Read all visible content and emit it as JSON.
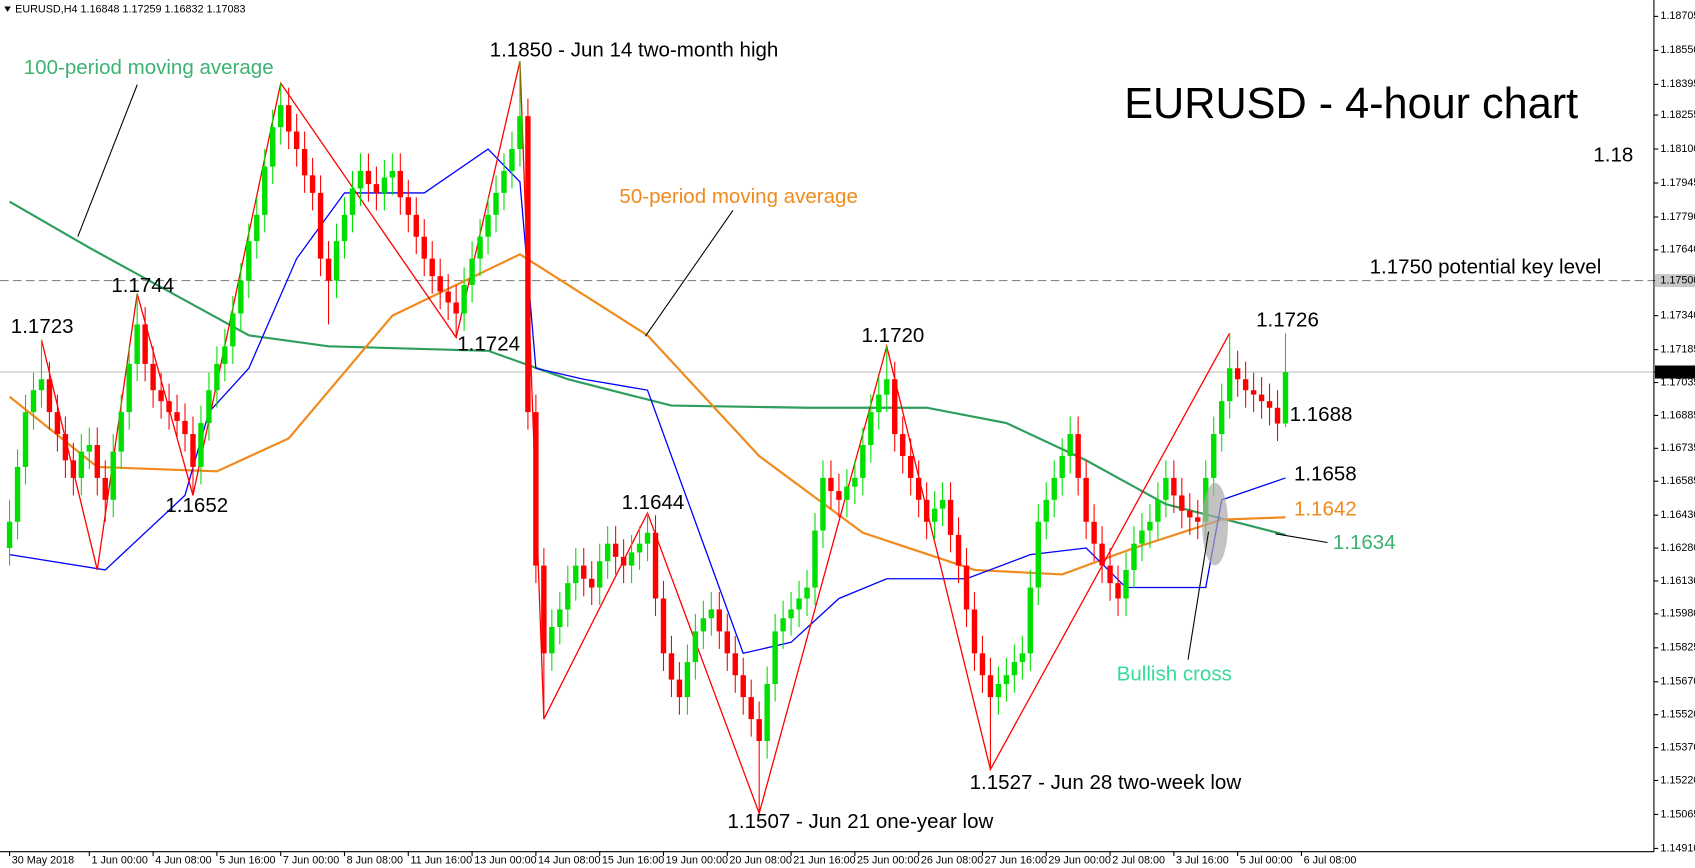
{
  "chart_data": {
    "type": "candlestick",
    "header": "EURUSD,H4  1.16848 1.17259 1.16832 1.17083",
    "title": "EURUSD - 4-hour chart",
    "xlim": [
      -1.2,
      206.2
    ],
    "ylim": [
      1.14895,
      1.18755
    ],
    "xticks": [
      {
        "value": 0,
        "label": "30 May 2018"
      },
      {
        "value": 10,
        "label": "1 Jun 00:00"
      },
      {
        "value": 18,
        "label": "4 Jun 08:00"
      },
      {
        "value": 26,
        "label": "5 Jun 16:00"
      },
      {
        "value": 34,
        "label": "7 Jun 00:00"
      },
      {
        "value": 42,
        "label": "8 Jun 08:00"
      },
      {
        "value": 50,
        "label": "11 Jun 16:00"
      },
      {
        "value": 58,
        "label": "13 Jun 00:00"
      },
      {
        "value": 66,
        "label": "14 Jun 08:00"
      },
      {
        "value": 74,
        "label": "15 Jun 16:00"
      },
      {
        "value": 82,
        "label": "19 Jun 00:00"
      },
      {
        "value": 90,
        "label": "20 Jun 08:00"
      },
      {
        "value": 98,
        "label": "21 Jun 16:00"
      },
      {
        "value": 106,
        "label": "25 Jun 00:00"
      },
      {
        "value": 114,
        "label": "26 Jun 08:00"
      },
      {
        "value": 122,
        "label": "27 Jun 16:00"
      },
      {
        "value": 130,
        "label": "29 Jun 00:00"
      },
      {
        "value": 138,
        "label": "2 Jul 08:00"
      },
      {
        "value": 146,
        "label": "3 Jul 16:00"
      },
      {
        "value": 154,
        "label": "5 Jul 00:00"
      },
      {
        "value": 162,
        "label": "6 Jul 08:00"
      }
    ],
    "yticks": [
      1.18705,
      {
        "value": 1.1855,
        "label": "1.18550"
      },
      1.18395,
      1.18255,
      {
        "value": 1.181,
        "label": "1.18100"
      },
      1.17945,
      {
        "value": 1.1779,
        "label": "1.17790"
      },
      {
        "value": 1.1764,
        "label": "1.17640"
      },
      {
        "value": 1.175,
        "label": "1.17500"
      },
      {
        "value": 1.1734,
        "label": "1.17340"
      },
      1.17185,
      1.17083,
      1.17035,
      1.16885,
      1.16735,
      1.16585,
      {
        "value": 1.1643,
        "label": "1.16430"
      },
      {
        "value": 1.1628,
        "label": "1.16280"
      },
      {
        "value": 1.1613,
        "label": "1.16130"
      },
      {
        "value": 1.1598,
        "label": "1.15980"
      },
      1.15825,
      {
        "value": 1.1567,
        "label": "1.15670"
      },
      {
        "value": 1.1552,
        "label": "1.15520"
      },
      {
        "value": 1.1537,
        "label": "1.15370"
      },
      {
        "value": 1.1522,
        "label": "1.15220"
      },
      1.15065,
      {
        "value": 1.1491,
        "label": "1.14910"
      }
    ],
    "key_level": 1.175,
    "last_price": 1.17083,
    "up_color": "#00e000",
    "down_color": "#ff0000",
    "ohlc": [
      [
        1.1628,
        1.165,
        1.162,
        1.164
      ],
      [
        1.164,
        1.1673,
        1.1632,
        1.1665
      ],
      [
        1.1665,
        1.1698,
        1.1657,
        1.169
      ],
      [
        1.169,
        1.1708,
        1.1682,
        1.17
      ],
      [
        1.17,
        1.1723,
        1.1692,
        1.1705
      ],
      [
        1.1705,
        1.1713,
        1.1682,
        1.169
      ],
      [
        1.169,
        1.1698,
        1.1672,
        1.168
      ],
      [
        1.168,
        1.1688,
        1.166,
        1.1668
      ],
      [
        1.1668,
        1.1676,
        1.1652,
        1.166
      ],
      [
        1.166,
        1.168,
        1.1652,
        1.1672
      ],
      [
        1.1672,
        1.1683,
        1.1664,
        1.1675
      ],
      [
        1.1675,
        1.1683,
        1.1652,
        1.166
      ],
      [
        1.166,
        1.1668,
        1.164,
        1.165
      ],
      [
        1.165,
        1.168,
        1.1642,
        1.1672
      ],
      [
        1.1672,
        1.1698,
        1.1664,
        1.169
      ],
      [
        1.169,
        1.172,
        1.1682,
        1.1712
      ],
      [
        1.1712,
        1.1744,
        1.1704,
        1.173
      ],
      [
        1.173,
        1.1738,
        1.1704,
        1.1712
      ],
      [
        1.1712,
        1.172,
        1.1692,
        1.17
      ],
      [
        1.17,
        1.1708,
        1.1687,
        1.1695
      ],
      [
        1.1695,
        1.1703,
        1.1682,
        1.169
      ],
      [
        1.169,
        1.1698,
        1.1678,
        1.1686
      ],
      [
        1.1686,
        1.1694,
        1.1672,
        1.168
      ],
      [
        1.168,
        1.1688,
        1.1652,
        1.1665
      ],
      [
        1.1665,
        1.1693,
        1.1657,
        1.1685
      ],
      [
        1.1685,
        1.1708,
        1.1677,
        1.17
      ],
      [
        1.17,
        1.172,
        1.1692,
        1.1712
      ],
      [
        1.1712,
        1.1728,
        1.1704,
        1.172
      ],
      [
        1.172,
        1.1743,
        1.1712,
        1.1735
      ],
      [
        1.1735,
        1.1758,
        1.1727,
        1.175
      ],
      [
        1.175,
        1.1776,
        1.1742,
        1.1768
      ],
      [
        1.1768,
        1.1788,
        1.176,
        1.178
      ],
      [
        1.178,
        1.181,
        1.1772,
        1.1802
      ],
      [
        1.1802,
        1.1828,
        1.1794,
        1.182
      ],
      [
        1.182,
        1.184,
        1.1812,
        1.183
      ],
      [
        1.183,
        1.1838,
        1.181,
        1.1818
      ],
      [
        1.1818,
        1.1826,
        1.1802,
        1.181
      ],
      [
        1.181,
        1.1818,
        1.179,
        1.1798
      ],
      [
        1.1798,
        1.1806,
        1.1782,
        1.179
      ],
      [
        1.179,
        1.1798,
        1.1752,
        1.176
      ],
      [
        1.176,
        1.1768,
        1.173,
        1.175
      ],
      [
        1.175,
        1.1776,
        1.1742,
        1.1768
      ],
      [
        1.1768,
        1.1788,
        1.176,
        1.178
      ],
      [
        1.178,
        1.18,
        1.1772,
        1.1792
      ],
      [
        1.1792,
        1.1808,
        1.1784,
        1.18
      ],
      [
        1.18,
        1.1808,
        1.1786,
        1.1794
      ],
      [
        1.1794,
        1.1802,
        1.1782,
        1.179
      ],
      [
        1.179,
        1.1805,
        1.1782,
        1.1797
      ],
      [
        1.1797,
        1.1808,
        1.1789,
        1.18
      ],
      [
        1.18,
        1.1808,
        1.178,
        1.1788
      ],
      [
        1.1788,
        1.1796,
        1.1772,
        1.178
      ],
      [
        1.178,
        1.1788,
        1.1762,
        1.177
      ],
      [
        1.177,
        1.1778,
        1.1752,
        1.176
      ],
      [
        1.176,
        1.1768,
        1.1744,
        1.1752
      ],
      [
        1.1752,
        1.176,
        1.1737,
        1.1745
      ],
      [
        1.1745,
        1.1753,
        1.1732,
        1.174
      ],
      [
        1.174,
        1.1748,
        1.1724,
        1.1735
      ],
      [
        1.1735,
        1.1756,
        1.1727,
        1.1748
      ],
      [
        1.1748,
        1.1768,
        1.174,
        1.176
      ],
      [
        1.176,
        1.1778,
        1.1752,
        1.177
      ],
      [
        1.177,
        1.1788,
        1.1762,
        1.178
      ],
      [
        1.178,
        1.1798,
        1.1772,
        1.179
      ],
      [
        1.179,
        1.1808,
        1.1782,
        1.18
      ],
      [
        1.18,
        1.1818,
        1.1792,
        1.181
      ],
      [
        1.181,
        1.185,
        1.1802,
        1.1825
      ],
      [
        1.1825,
        1.1833,
        1.1682,
        1.169
      ],
      [
        1.169,
        1.1698,
        1.1612,
        1.162
      ],
      [
        1.162,
        1.1628,
        1.155,
        1.158
      ],
      [
        1.158,
        1.16,
        1.1572,
        1.1592
      ],
      [
        1.1592,
        1.1608,
        1.1584,
        1.16
      ],
      [
        1.16,
        1.162,
        1.1592,
        1.1612
      ],
      [
        1.1612,
        1.1628,
        1.1604,
        1.162
      ],
      [
        1.162,
        1.1628,
        1.1606,
        1.1614
      ],
      [
        1.1614,
        1.1622,
        1.1602,
        1.161
      ],
      [
        1.161,
        1.163,
        1.1602,
        1.1622
      ],
      [
        1.1622,
        1.1638,
        1.1614,
        1.163
      ],
      [
        1.163,
        1.1638,
        1.1616,
        1.1624
      ],
      [
        1.1624,
        1.1632,
        1.1612,
        1.162
      ],
      [
        1.162,
        1.1634,
        1.1612,
        1.1626
      ],
      [
        1.1626,
        1.1638,
        1.1618,
        1.163
      ],
      [
        1.163,
        1.1644,
        1.1622,
        1.1635
      ],
      [
        1.1635,
        1.1643,
        1.1597,
        1.1605
      ],
      [
        1.1605,
        1.1613,
        1.1572,
        1.158
      ],
      [
        1.158,
        1.1588,
        1.156,
        1.1568
      ],
      [
        1.1568,
        1.1576,
        1.1552,
        1.156
      ],
      [
        1.156,
        1.1584,
        1.1552,
        1.1576
      ],
      [
        1.1576,
        1.1598,
        1.1568,
        1.159
      ],
      [
        1.159,
        1.1604,
        1.1582,
        1.1596
      ],
      [
        1.1596,
        1.1608,
        1.1588,
        1.16
      ],
      [
        1.16,
        1.1608,
        1.1582,
        1.159
      ],
      [
        1.159,
        1.1598,
        1.1572,
        1.158
      ],
      [
        1.158,
        1.1588,
        1.1562,
        1.157
      ],
      [
        1.157,
        1.1578,
        1.1552,
        1.156
      ],
      [
        1.156,
        1.1568,
        1.1542,
        1.155
      ],
      [
        1.155,
        1.1558,
        1.1507,
        1.154
      ],
      [
        1.154,
        1.1574,
        1.1532,
        1.1566
      ],
      [
        1.1566,
        1.1598,
        1.1558,
        1.159
      ],
      [
        1.159,
        1.1604,
        1.1582,
        1.1596
      ],
      [
        1.1596,
        1.1608,
        1.1588,
        1.16
      ],
      [
        1.16,
        1.1613,
        1.1592,
        1.1605
      ],
      [
        1.1605,
        1.1618,
        1.1597,
        1.161
      ],
      [
        1.161,
        1.1644,
        1.1602,
        1.1636
      ],
      [
        1.1636,
        1.1668,
        1.1628,
        1.166
      ],
      [
        1.166,
        1.1668,
        1.1646,
        1.1654
      ],
      [
        1.1654,
        1.1662,
        1.1642,
        1.165
      ],
      [
        1.165,
        1.1664,
        1.1642,
        1.1656
      ],
      [
        1.1656,
        1.1668,
        1.1648,
        1.166
      ],
      [
        1.166,
        1.1683,
        1.1652,
        1.1675
      ],
      [
        1.1675,
        1.1698,
        1.1667,
        1.169
      ],
      [
        1.169,
        1.1706,
        1.1682,
        1.1698
      ],
      [
        1.1698,
        1.172,
        1.169,
        1.1705
      ],
      [
        1.1705,
        1.1713,
        1.1672,
        1.168
      ],
      [
        1.168,
        1.1688,
        1.1662,
        1.167
      ],
      [
        1.167,
        1.1678,
        1.1652,
        1.166
      ],
      [
        1.166,
        1.1668,
        1.1642,
        1.165
      ],
      [
        1.165,
        1.1658,
        1.1632,
        1.164
      ],
      [
        1.164,
        1.1654,
        1.1632,
        1.1646
      ],
      [
        1.1646,
        1.1658,
        1.1638,
        1.165
      ],
      [
        1.165,
        1.1658,
        1.1626,
        1.1634
      ],
      [
        1.1634,
        1.1642,
        1.1612,
        1.162
      ],
      [
        1.162,
        1.1628,
        1.1592,
        1.16
      ],
      [
        1.16,
        1.1608,
        1.1572,
        1.158
      ],
      [
        1.158,
        1.1588,
        1.1562,
        1.157
      ],
      [
        1.157,
        1.1578,
        1.1527,
        1.156
      ],
      [
        1.156,
        1.1574,
        1.1552,
        1.1566
      ],
      [
        1.1566,
        1.1578,
        1.1558,
        1.157
      ],
      [
        1.157,
        1.1584,
        1.1562,
        1.1576
      ],
      [
        1.1576,
        1.1588,
        1.1568,
        1.158
      ],
      [
        1.158,
        1.1618,
        1.1572,
        1.161
      ],
      [
        1.161,
        1.1648,
        1.1602,
        1.164
      ],
      [
        1.164,
        1.1658,
        1.1632,
        1.165
      ],
      [
        1.165,
        1.1668,
        1.1642,
        1.166
      ],
      [
        1.166,
        1.1678,
        1.1652,
        1.167
      ],
      [
        1.167,
        1.1688,
        1.1662,
        1.168
      ],
      [
        1.168,
        1.1688,
        1.1652,
        1.166
      ],
      [
        1.166,
        1.1668,
        1.1632,
        1.164
      ],
      [
        1.164,
        1.1648,
        1.1622,
        1.163
      ],
      [
        1.163,
        1.1638,
        1.1612,
        1.162
      ],
      [
        1.162,
        1.1628,
        1.1604,
        1.1612
      ],
      [
        1.1612,
        1.162,
        1.1597,
        1.1605
      ],
      [
        1.1605,
        1.1626,
        1.1597,
        1.1618
      ],
      [
        1.1618,
        1.1638,
        1.161,
        1.163
      ],
      [
        1.163,
        1.1644,
        1.1622,
        1.1636
      ],
      [
        1.1636,
        1.1648,
        1.1628,
        1.164
      ],
      [
        1.164,
        1.1658,
        1.1632,
        1.165
      ],
      [
        1.165,
        1.1668,
        1.1642,
        1.166
      ],
      [
        1.166,
        1.1668,
        1.1644,
        1.1652
      ],
      [
        1.1652,
        1.166,
        1.1637,
        1.1645
      ],
      [
        1.1645,
        1.1653,
        1.1634,
        1.1642
      ],
      [
        1.1642,
        1.165,
        1.1632,
        1.164
      ],
      [
        1.164,
        1.1668,
        1.1632,
        1.166
      ],
      [
        1.166,
        1.1688,
        1.1652,
        1.168
      ],
      [
        1.168,
        1.1703,
        1.1672,
        1.1695
      ],
      [
        1.1695,
        1.1726,
        1.1687,
        1.171
      ],
      [
        1.171,
        1.1718,
        1.1697,
        1.1705
      ],
      [
        1.1705,
        1.1713,
        1.1692,
        1.17
      ],
      [
        1.17,
        1.1708,
        1.169,
        1.1698
      ],
      [
        1.1698,
        1.1706,
        1.1687,
        1.1695
      ],
      [
        1.1695,
        1.1703,
        1.1684,
        1.1692
      ],
      [
        1.1692,
        1.17,
        1.16768,
        1.16848
      ],
      [
        1.16848,
        1.17259,
        1.16832,
        1.17083
      ]
    ],
    "lines": [
      {
        "name": "100-period moving average",
        "color": "#2e9e5e",
        "x": [
          0,
          10,
          20,
          30,
          40,
          60,
          70,
          83,
          100,
          115,
          125,
          135,
          145,
          160
        ],
        "values": [
          1.1786,
          1.1765,
          1.1745,
          1.1725,
          1.172,
          1.1718,
          1.1705,
          1.1693,
          1.1692,
          1.1692,
          1.1685,
          1.1668,
          1.1648,
          1.1634
        ]
      },
      {
        "name": "50-period moving average",
        "color": "#f08a1c",
        "x": [
          0,
          11,
          26,
          35,
          48,
          64,
          80,
          94,
          107,
          121,
          132,
          141,
          152,
          160
        ],
        "values": [
          1.1697,
          1.1665,
          1.1663,
          1.1678,
          1.1734,
          1.1762,
          1.1725,
          1.167,
          1.1635,
          1.1618,
          1.1616,
          1.1628,
          1.1641,
          1.1642
        ]
      },
      {
        "color": "#0000ff",
        "x": [
          0,
          12,
          22,
          25,
          30,
          36,
          42,
          52,
          60,
          64,
          66,
          72,
          80,
          88,
          92,
          98,
          104,
          110,
          120,
          128,
          135,
          140,
          150,
          152,
          160
        ],
        "values": [
          1.1625,
          1.1618,
          1.1652,
          1.169,
          1.171,
          1.176,
          1.179,
          1.179,
          1.181,
          1.1795,
          1.171,
          1.1705,
          1.17,
          1.162,
          1.158,
          1.1585,
          1.1605,
          1.1614,
          1.1614,
          1.1625,
          1.1628,
          1.161,
          1.161,
          1.165,
          1.166
        ]
      },
      {
        "color": "#ff0000",
        "x": [
          4,
          11,
          16,
          23,
          34,
          56,
          64,
          67,
          80,
          94,
          110,
          123,
          153
        ],
        "values": [
          1.1723,
          1.1618,
          1.1744,
          1.1652,
          1.184,
          1.1724,
          1.185,
          1.155,
          1.1644,
          1.1507,
          1.172,
          1.1527,
          1.1726
        ]
      }
    ],
    "annotations": [
      "1.1850 - Jun 14 two-month high",
      "1.18",
      "1.1750 potential key level",
      "1.1744",
      "1.1723",
      "1.1724",
      "1.1720",
      "1.1726",
      "1.1688",
      "1.1658",
      "1.1642",
      "1.1634",
      "1.1652",
      "1.1644",
      "Bullish cross",
      "1.1507 - Jun 21 one-year low",
      "1.1527 - Jun 28 two-week low"
    ]
  }
}
